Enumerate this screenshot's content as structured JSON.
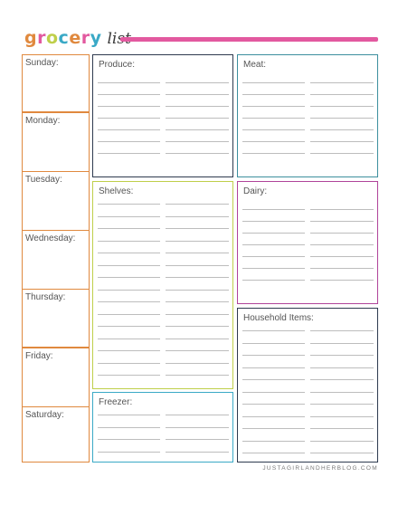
{
  "header": {
    "title_word": "grocery",
    "title_script": "list",
    "letter_colors": [
      "#e0893e",
      "#e2599f",
      "#bfcf4a",
      "#3aa9c6",
      "#e0893e",
      "#e2599f",
      "#3aa9c6"
    ],
    "bar_color": "#e2599f"
  },
  "days": [
    "Sunday:",
    "Monday:",
    "Tuesday:",
    "Wednesday:",
    "Thursday:",
    "Friday:",
    "Saturday:"
  ],
  "sections": {
    "produce": "Produce:",
    "meat": "Meat:",
    "shelves": "Shelves:",
    "dairy": "Dairy:",
    "household": "Household Items:",
    "freezer": "Freezer:"
  },
  "colors": {
    "days_border": "#e0893e",
    "produce_border": "#2e3a4f",
    "meat_border": "#3d8f9e",
    "shelves_border": "#bfcf4a",
    "dairy_border": "#b0449a",
    "household_border": "#2e3a4f",
    "freezer_border": "#3aa9c6"
  },
  "footer": "JUSTAGIRLANDHERBLOG.COM"
}
